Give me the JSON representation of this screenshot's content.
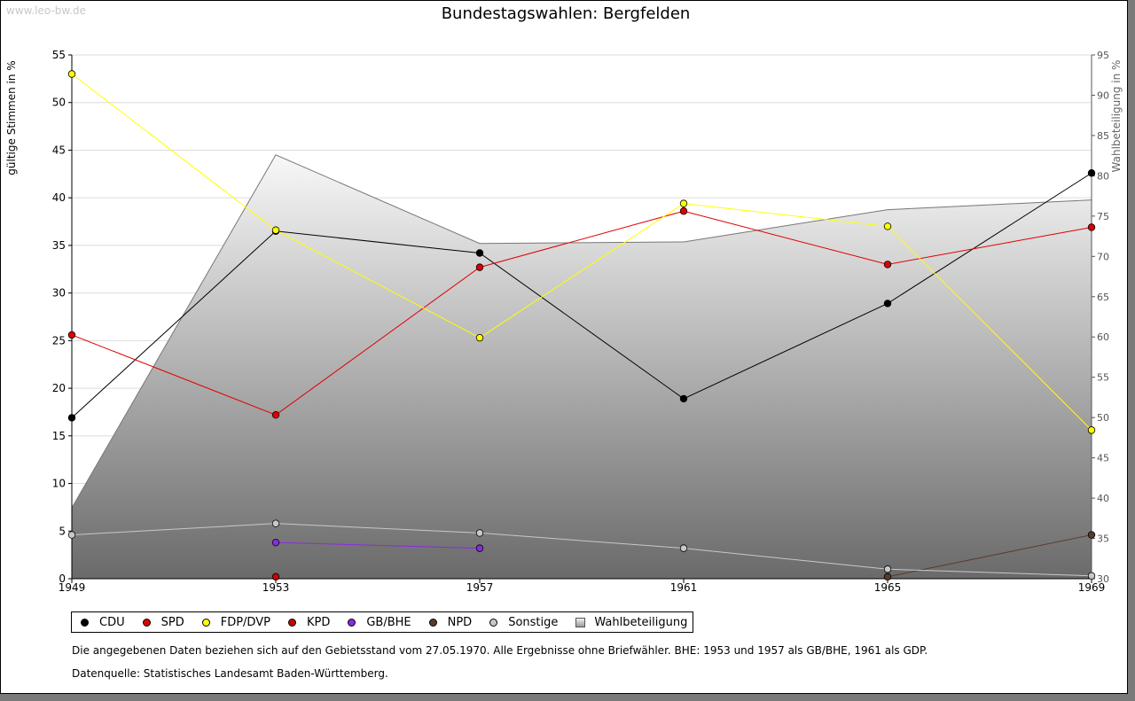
{
  "watermark": "www.leo-bw.de",
  "chart_data": {
    "type": "line",
    "title": "Bundestagswahlen: Bergfelden",
    "ylabel": "gültige Stimmen in %",
    "y2label": "Wahlbeteiligung in %",
    "x": [
      1949,
      1953,
      1957,
      1961,
      1965,
      1969
    ],
    "x_ticks": [
      "1949",
      "1953",
      "1957",
      "1961",
      "1965",
      "1969"
    ],
    "ylim": [
      0,
      55
    ],
    "y_ticks": [
      "0",
      "5",
      "10",
      "15",
      "20",
      "25",
      "30",
      "35",
      "40",
      "45",
      "50",
      "55"
    ],
    "y2lim": [
      30,
      95
    ],
    "y2_ticks": [
      "30",
      "35",
      "40",
      "45",
      "50",
      "55",
      "60",
      "65",
      "70",
      "75",
      "80",
      "85",
      "90",
      "95"
    ],
    "grid": true,
    "turnout": {
      "name": "Wahlbeteiligung",
      "values": [
        38.8,
        82.6,
        71.6,
        71.8,
        75.8,
        77.0
      ]
    },
    "series": [
      {
        "name": "CDU",
        "color": "#000000",
        "values": [
          16.9,
          36.5,
          34.2,
          18.9,
          28.9,
          42.6
        ]
      },
      {
        "name": "SPD",
        "color": "#e00000",
        "values": [
          25.6,
          17.2,
          32.7,
          38.6,
          33.0,
          36.9
        ]
      },
      {
        "name": "FDP/DVP",
        "color": "#ffff00",
        "values": [
          53.0,
          36.6,
          25.3,
          39.4,
          37.0,
          15.6
        ]
      },
      {
        "name": "KPD",
        "color": "#cc0000",
        "values": [
          null,
          0.2,
          null,
          null,
          null,
          null
        ]
      },
      {
        "name": "GB/BHE",
        "color": "#8a2be2",
        "values": [
          null,
          3.8,
          3.2,
          null,
          null,
          null
        ]
      },
      {
        "name": "NPD",
        "color": "#5a3a2a",
        "values": [
          null,
          null,
          null,
          null,
          0.2,
          4.6
        ]
      },
      {
        "name": "Sonstige",
        "color": "#c8c8c8",
        "values": [
          4.6,
          5.8,
          4.8,
          3.2,
          1.0,
          0.3
        ]
      }
    ],
    "legend_position": "bottom-left"
  },
  "legend": {
    "items": [
      {
        "label": "CDU",
        "color": "#000000"
      },
      {
        "label": "SPD",
        "color": "#e00000"
      },
      {
        "label": "FDP/DVP",
        "color": "#ffff00"
      },
      {
        "label": "KPD",
        "color": "#cc0000"
      },
      {
        "label": "GB/BHE",
        "color": "#8a2be2"
      },
      {
        "label": "NPD",
        "color": "#5a3a2a"
      },
      {
        "label": "Sonstige",
        "color": "#c8c8c8"
      }
    ],
    "turnout_label": "Wahlbeteiligung"
  },
  "notes": {
    "line1": "Die angegebenen Daten beziehen sich auf den Gebietsstand vom 27.05.1970. Alle Ergebnisse ohne Briefwähler. BHE: 1953 und 1957 als GB/BHE, 1961 als GDP.",
    "line2": "Datenquelle: Statistisches Landesamt Baden-Württemberg."
  }
}
